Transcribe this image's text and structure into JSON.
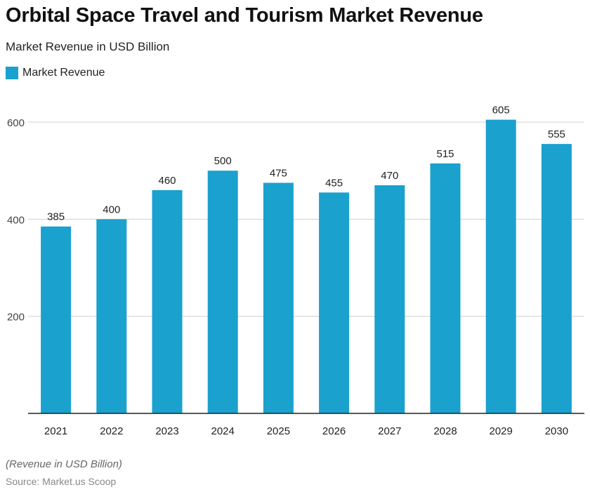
{
  "header": {
    "title": "Orbital Space Travel and Tourism Market Revenue",
    "subtitle": "Market Revenue in USD Billion"
  },
  "legend": {
    "label": "Market Revenue",
    "color": "#1aa1ce"
  },
  "footer": {
    "note": "(Revenue in USD Billion)",
    "source": "Source: Market.us Scoop"
  },
  "colors": {
    "bar": "#1aa1ce",
    "grid": "#d0d0d0",
    "axis": "#222222"
  },
  "chart_data": {
    "type": "bar",
    "categories": [
      "2021",
      "2022",
      "2023",
      "2024",
      "2025",
      "2026",
      "2027",
      "2028",
      "2029",
      "2030"
    ],
    "series": [
      {
        "name": "Market Revenue",
        "values": [
          385,
          400,
          460,
          500,
          475,
          455,
          470,
          515,
          605,
          555
        ]
      }
    ],
    "yticks": [
      200,
      400,
      600
    ],
    "ylim": [
      0,
      660
    ],
    "grid": true,
    "legend_position": "top-left",
    "data_labels": true
  }
}
